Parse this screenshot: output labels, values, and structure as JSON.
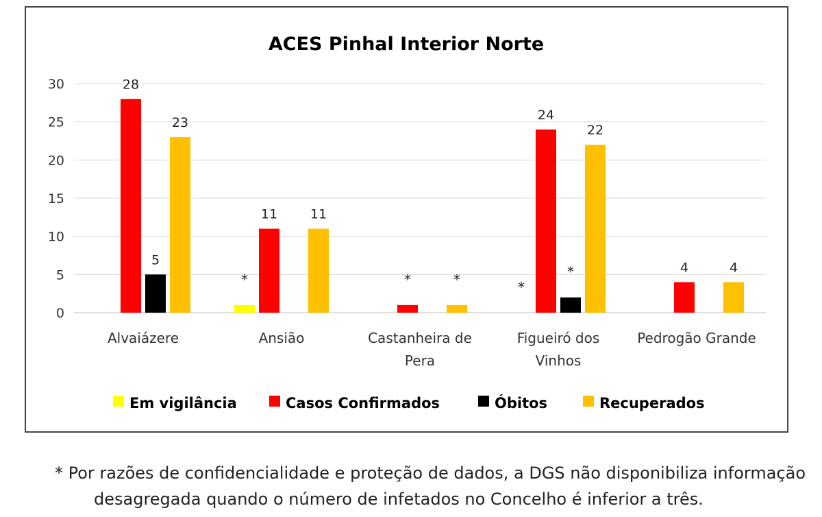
{
  "chart_data": {
    "type": "bar",
    "title": "ACES Pinhal Interior Norte",
    "categories": [
      "Alvaiázere",
      "Ansião",
      "Castanheira de Pera",
      "Figueiró dos Vinhos",
      "Pedrogão Grande"
    ],
    "category_lines": [
      [
        "Alvaiázere"
      ],
      [
        "Ansião"
      ],
      [
        "Castanheira de",
        "Pera"
      ],
      [
        "Figueiró dos",
        "Vinhos"
      ],
      [
        "Pedrogão Grande"
      ]
    ],
    "series": [
      {
        "name": "Em vigilância",
        "color": "#FFFF00",
        "values": [
          null,
          1,
          null,
          null,
          null
        ],
        "labels": [
          "",
          "*",
          "",
          "*",
          ""
        ]
      },
      {
        "name": "Casos Confirmados",
        "color": "#FF0000",
        "values": [
          28,
          11,
          1,
          24,
          4
        ],
        "labels": [
          "28",
          "11",
          "*",
          "24",
          "4"
        ]
      },
      {
        "name": "Óbitos",
        "color": "#000000",
        "values": [
          5,
          null,
          null,
          2,
          null
        ],
        "labels": [
          "5",
          "",
          "",
          "*",
          ""
        ]
      },
      {
        "name": "Recuperados",
        "color": "#FFC000",
        "values": [
          23,
          11,
          1,
          22,
          4
        ],
        "labels": [
          "23",
          "11",
          "*",
          "22",
          "4"
        ]
      }
    ],
    "yticks": [
      "0",
      "5",
      "10",
      "15",
      "20",
      "25",
      "30"
    ],
    "ylim": [
      0,
      30
    ],
    "grid": true,
    "legend_position": "bottom"
  },
  "footnote": {
    "line1": "* Por razões de confidencialidade e proteção de dados, a DGS não disponibiliza informação",
    "line2": "desagregada quando o número de infetados no Concelho é inferior a três."
  }
}
